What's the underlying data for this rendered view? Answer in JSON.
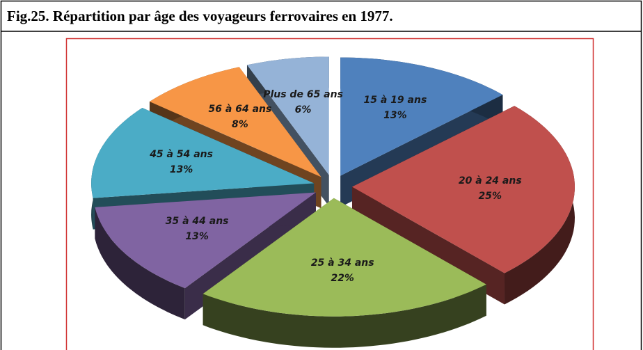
{
  "chart_data": {
    "type": "pie3d",
    "title": "Fig.25. Répartition par âge des voyageurs ferrovaires en 1977.",
    "categories": [
      "15 à 19 ans",
      "20 à 24 ans",
      "25 à 34  ans",
      "35 à 44  ans",
      "45 à 54 ans",
      "56 à 64 ans",
      "Plus de 65 ans"
    ],
    "values": [
      13,
      25,
      22,
      13,
      13,
      8,
      6
    ],
    "value_labels": [
      "13%",
      "25%",
      "22%",
      "13%",
      "13%",
      "8%",
      "6%"
    ],
    "colors": [
      "#4f81bd",
      "#c0504d",
      "#9bbb59",
      "#8064a2",
      "#4bacc6",
      "#f79646",
      "#95b3d7"
    ]
  }
}
